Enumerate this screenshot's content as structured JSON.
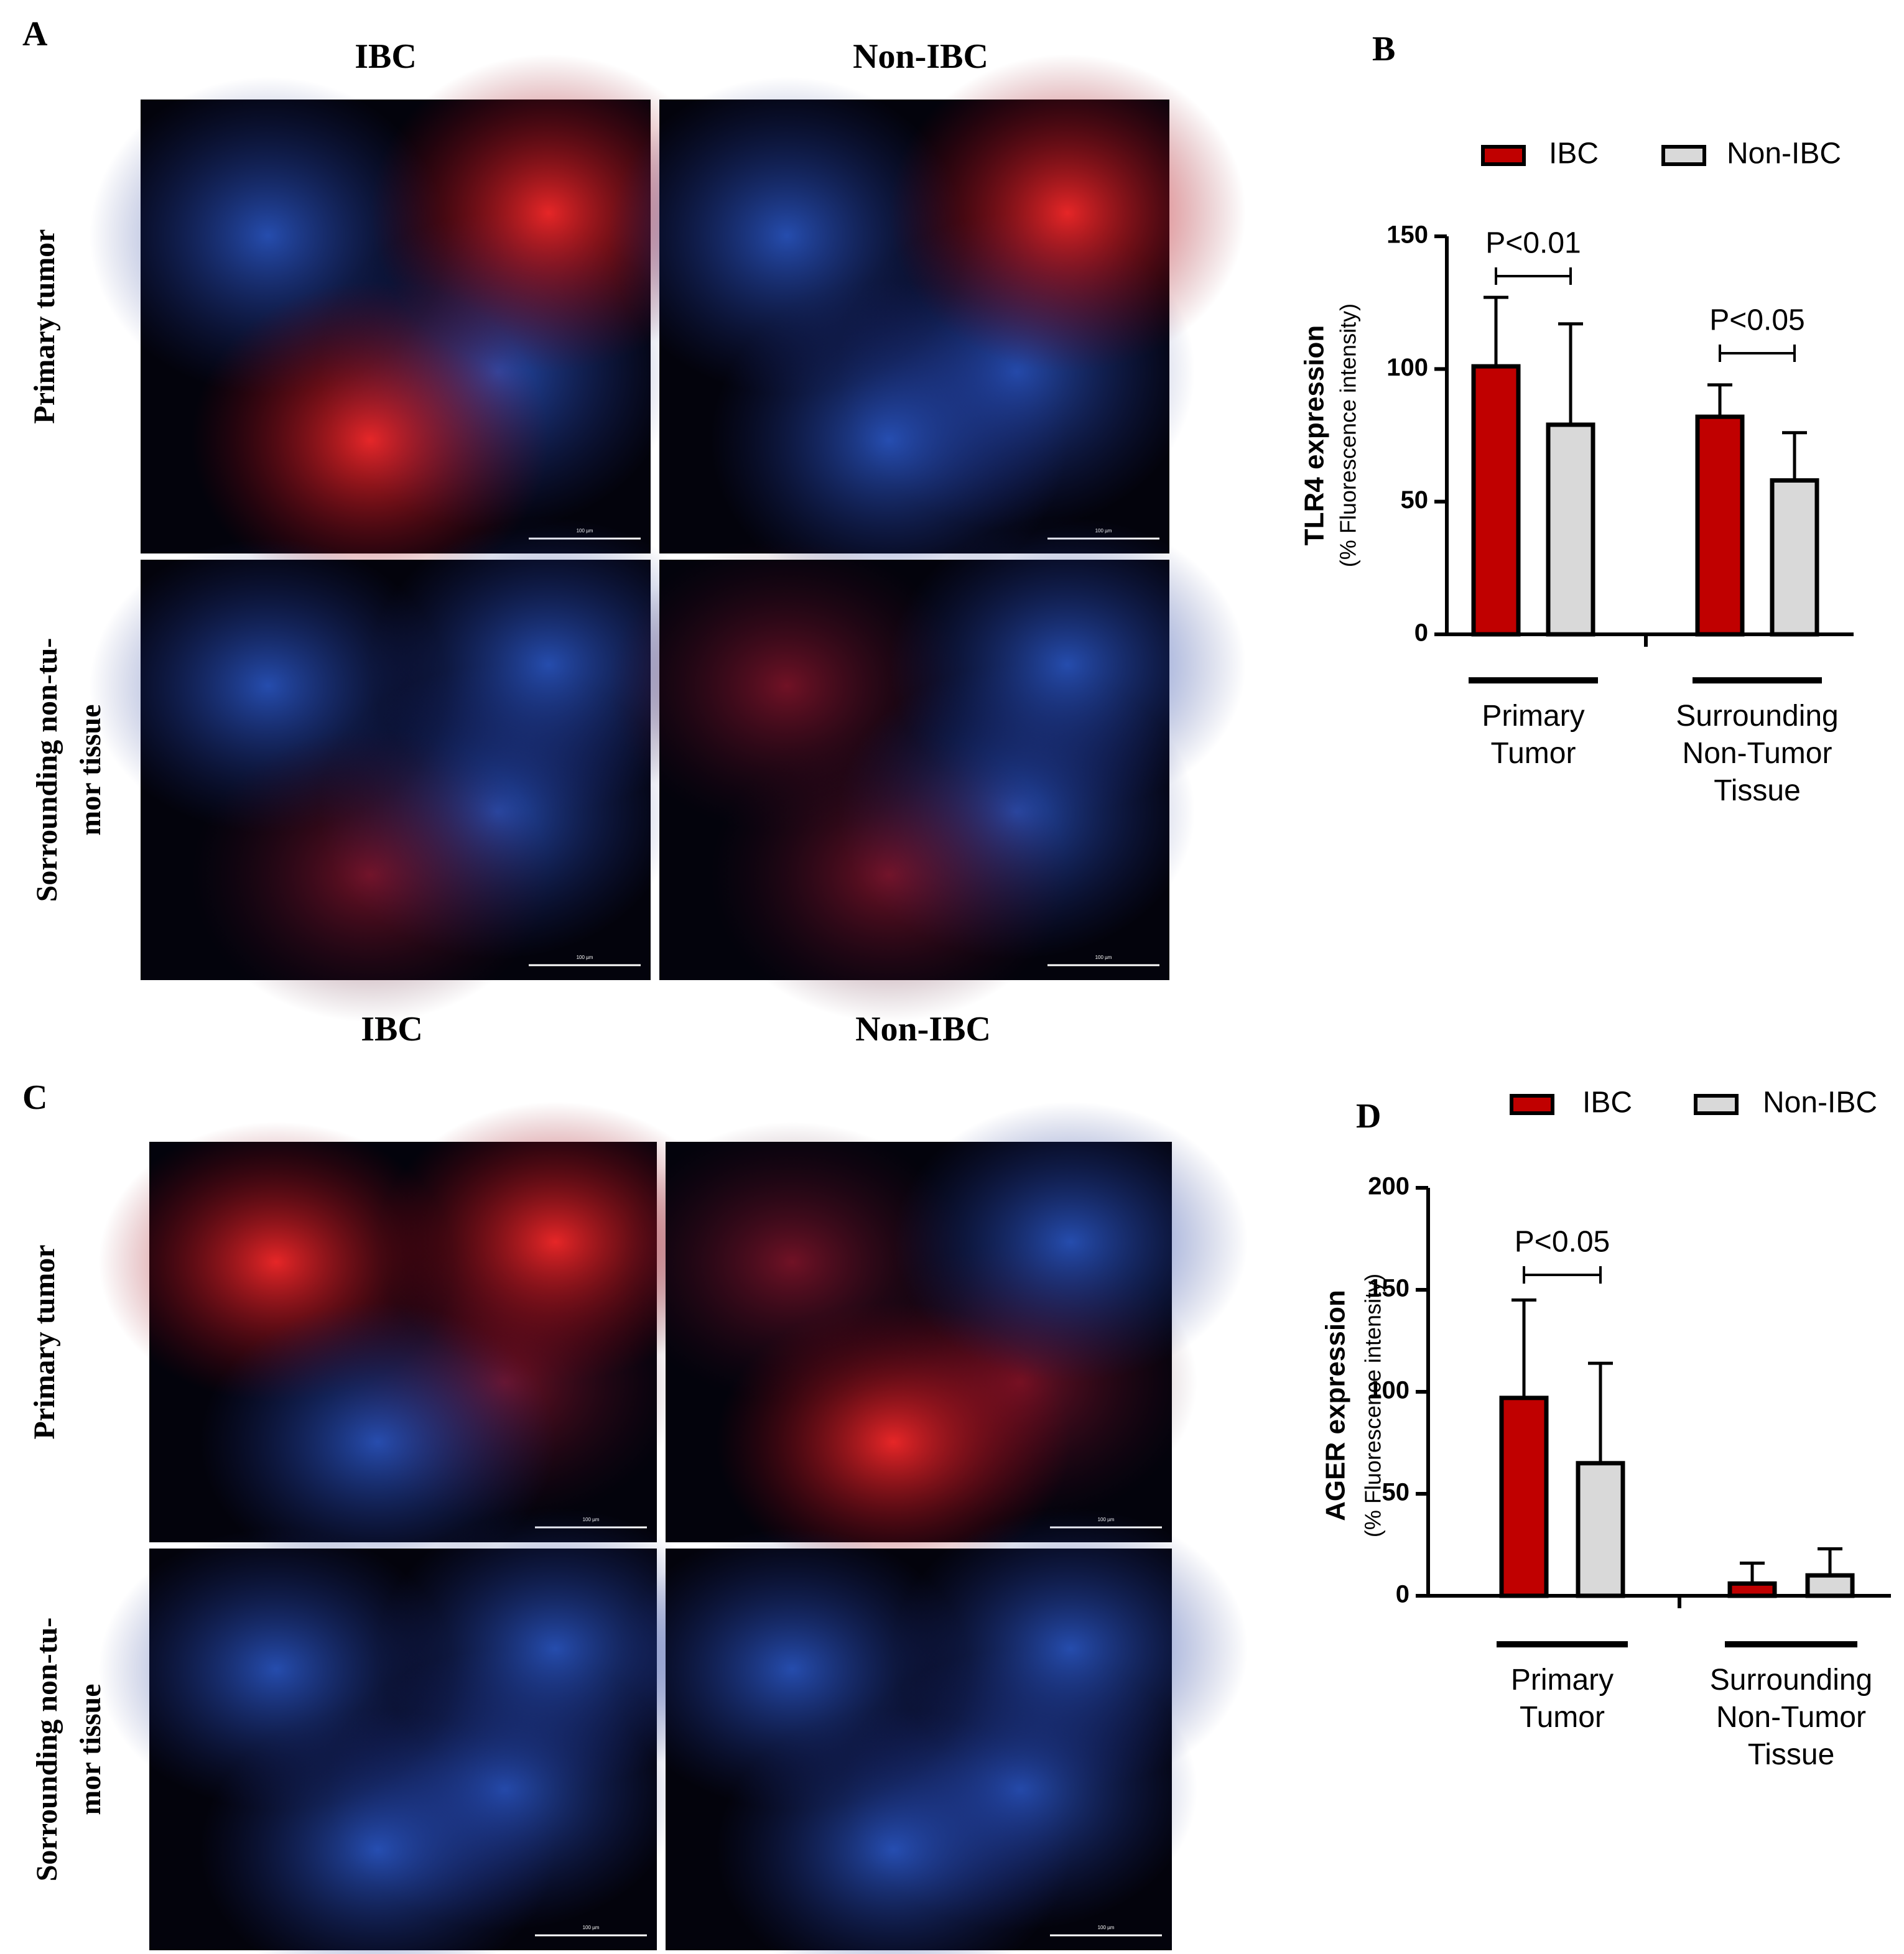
{
  "image_panels": [
    {
      "label": "A",
      "columns": [
        "IBC",
        "Non-IBC"
      ],
      "rows": [
        [
          "Primary tumor"
        ],
        [
          "Sorrounding non-tu-",
          "mor tissue"
        ]
      ],
      "scale_bar": "100 µm"
    },
    {
      "label": "C",
      "columns": [
        "IBC",
        "Non-IBC"
      ],
      "rows": [
        [
          "Primary tumor"
        ],
        [
          "Sorrounding non-tu-",
          "mor tissue"
        ]
      ],
      "scale_bar": "100 µm"
    }
  ],
  "chart_data": [
    {
      "type": "bar",
      "panel": "B",
      "y_label": "TLR4 expression",
      "y_label_sub": "(% Fluorescence intensity)",
      "categories": [
        "Primary\nTumor",
        "Surrounding\nNon-Tumor\nTissue"
      ],
      "series": [
        {
          "name": "IBC",
          "color": "#c00000",
          "values": [
            101,
            82
          ],
          "errors": [
            26,
            12
          ]
        },
        {
          "name": "Non-IBC",
          "color": "#d9d9d9",
          "values": [
            79,
            58
          ],
          "errors": [
            38,
            18
          ]
        }
      ],
      "annotations": [
        "P<0.01",
        "P<0.05"
      ],
      "ylim": [
        0,
        150
      ],
      "yticks": [
        0,
        50,
        100,
        150
      ]
    },
    {
      "type": "bar",
      "panel": "D",
      "y_label": "AGER expression",
      "y_label_sub": "(% Fluorescence intensity)",
      "categories": [
        "Primary\nTumor",
        "Surrounding\nNon-Tumor\nTissue"
      ],
      "series": [
        {
          "name": "IBC",
          "color": "#c00000",
          "values": [
            97,
            6
          ],
          "errors": [
            48,
            10
          ]
        },
        {
          "name": "Non-IBC",
          "color": "#d9d9d9",
          "values": [
            65,
            10
          ],
          "errors": [
            49,
            13
          ]
        }
      ],
      "annotations": [
        "P<0.05"
      ],
      "ylim": [
        0,
        200
      ],
      "yticks": [
        0,
        50,
        100,
        150,
        200
      ]
    }
  ]
}
